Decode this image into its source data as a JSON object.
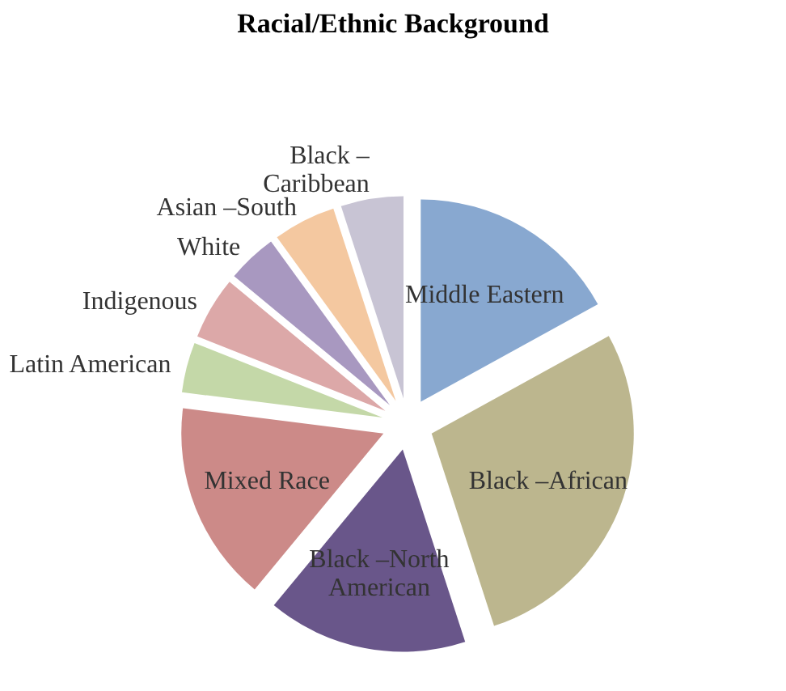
{
  "chart_data": {
    "type": "pie",
    "title": "Racial/Ethnic Background",
    "categories": [
      "Middle Eastern",
      "Black –African",
      "Black –North American",
      "Mixed Race",
      "Latin American",
      "Indigenous",
      "White",
      "Asian –South",
      "Black – Caribbean"
    ],
    "values": [
      17,
      28,
      16,
      16,
      4,
      5,
      4,
      5,
      5
    ],
    "colors": [
      "#88a8d0",
      "#bcb68e",
      "#69568a",
      "#cc8a88",
      "#c4d8a8",
      "#dca8a8",
      "#a898c0",
      "#f4c8a0",
      "#c8c4d4"
    ]
  }
}
